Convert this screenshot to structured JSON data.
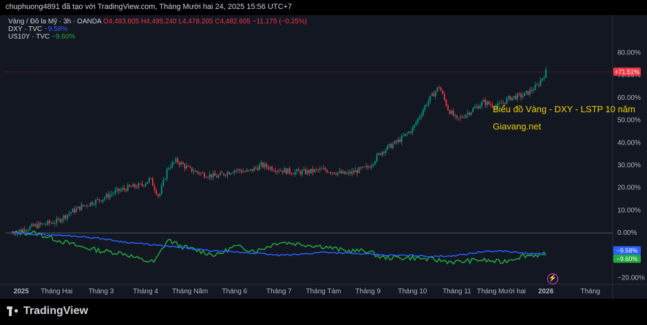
{
  "header": {
    "text": "chuphuong4891 đã tạo với TradingView.com, Tháng Mười hai 24, 2025 15:56 UTC+7"
  },
  "legend": {
    "gold": {
      "name": "Vàng / Đô la Mỹ · 3h · OANDA",
      "o": "O4,493.805",
      "h": "H4,495.240",
      "l": "L4,478.205",
      "c": "C4,482.605",
      "chg": "−11.175 (−0.25%)"
    },
    "dxy": {
      "name": "DXY · TVC",
      "chg": "−9.58%"
    },
    "us10y": {
      "name": "US10Y · TVC",
      "chg": "−9.60%"
    }
  },
  "annotations": {
    "line1": "Biểu đồ Vàng - DXY - LSTP 10 năm",
    "line2": "Giavang.net"
  },
  "brand": {
    "name": "TradingView"
  },
  "colors": {
    "up": "#089981",
    "down": "#f23645",
    "dxy": "#2962ff",
    "us10y": "#22ab3f",
    "background": "#131722"
  },
  "chart_data": {
    "type": "line",
    "y_unit": "%",
    "ylim": [
      -25,
      85
    ],
    "yticks": [
      "80.00%",
      "70.00%",
      "60.00%",
      "50.00%",
      "40.00%",
      "30.00%",
      "20.00%",
      "10.00%",
      "0.00%",
      "−20.00%"
    ],
    "yticks_values": [
      80,
      70,
      60,
      50,
      40,
      30,
      20,
      10,
      0,
      -20
    ],
    "xticks": [
      "2025",
      "Tháng Hai",
      "Tháng 3",
      "Tháng 4",
      "Tháng Năm",
      "Tháng 6",
      "Tháng 7",
      "Tháng Tám",
      "Tháng 9",
      "Tháng 10",
      "Tháng 11",
      "Tháng Mười hai",
      "2026",
      "Tháng"
    ],
    "xticks_values": [
      0,
      1,
      2,
      3,
      4,
      5,
      6,
      7,
      8,
      9,
      10,
      11,
      12,
      13
    ],
    "xlim": [
      -0.15,
      13.5
    ],
    "grid": false,
    "series": [
      {
        "name": "Vàng / Đô la Mỹ",
        "label": "+71.51%",
        "x": [
          0,
          0.5,
          1,
          1.3,
          1.6,
          2,
          2.3,
          2.6,
          2.9,
          3.1,
          3.3,
          3.5,
          3.7,
          4,
          4.3,
          4.6,
          5,
          5.3,
          5.6,
          6,
          6.3,
          6.6,
          7,
          7.5,
          8,
          8.3,
          8.7,
          9,
          9.3,
          9.6,
          9.8,
          10,
          10.3,
          10.6,
          10.9,
          11.2,
          11.5,
          11.8,
          12
        ],
        "y": [
          0,
          3,
          5,
          9,
          12,
          15,
          18,
          20,
          21,
          24,
          16,
          29,
          32,
          28,
          26,
          25,
          28,
          27,
          30,
          28,
          27,
          27,
          28,
          26,
          29,
          36,
          41,
          46,
          57,
          65,
          55,
          50,
          54,
          58,
          56,
          60,
          61,
          65,
          71.5
        ]
      },
      {
        "name": "DXY",
        "label": "−9.58%",
        "x": [
          0,
          0.5,
          1,
          1.5,
          2,
          2.5,
          3,
          3.5,
          4,
          4.5,
          5,
          5.5,
          6,
          6.5,
          7,
          7.5,
          8,
          8.5,
          9,
          9.5,
          10,
          10.5,
          11,
          11.5,
          12
        ],
        "y": [
          0,
          -0.5,
          -1,
          -1.5,
          -2.5,
          -4,
          -5,
          -6,
          -7,
          -8,
          -8.5,
          -9,
          -10,
          -9.5,
          -8.5,
          -9,
          -9.5,
          -10,
          -10,
          -10.5,
          -10,
          -8.5,
          -8,
          -9,
          -9.6
        ]
      },
      {
        "name": "US10Y",
        "label": "−9.60%",
        "x": [
          0,
          0.5,
          1,
          1.5,
          2,
          2.5,
          2.9,
          3.2,
          3.5,
          3.8,
          4.2,
          4.6,
          5,
          5.5,
          6,
          6.5,
          7,
          7.5,
          8,
          8.3,
          8.6,
          9,
          9.5,
          10,
          10.5,
          11,
          11.5,
          12
        ],
        "y": [
          0,
          0,
          -3,
          -6,
          -8,
          -9,
          -12,
          -13,
          -3,
          -6,
          -8,
          -10,
          -6,
          -8,
          -4,
          -5,
          -6,
          -8,
          -8,
          -11,
          -11,
          -11,
          -12,
          -13,
          -12,
          -13,
          -10,
          -9.6
        ]
      }
    ]
  }
}
